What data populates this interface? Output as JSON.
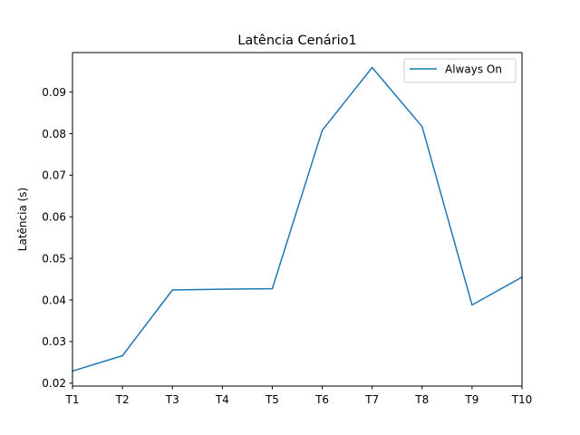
{
  "chart_data": {
    "type": "line",
    "title": "Latência Cenário1",
    "xlabel": "",
    "ylabel": "Latência (s)",
    "categories": [
      "T1",
      "T2",
      "T3",
      "T4",
      "T5",
      "T6",
      "T7",
      "T8",
      "T9",
      "T10"
    ],
    "series": [
      {
        "name": "Always On",
        "color": "#1f77b4",
        "values": [
          0.0229,
          0.0266,
          0.0424,
          0.0426,
          0.0427,
          0.0808,
          0.0959,
          0.0817,
          0.0388,
          0.0455
        ]
      }
    ],
    "yticks": [
      0.02,
      0.03,
      0.04,
      0.05,
      0.06,
      0.07,
      0.08,
      0.09
    ],
    "ytick_labels": [
      "0.02",
      "0.03",
      "0.04",
      "0.05",
      "0.06",
      "0.07",
      "0.08",
      "0.09"
    ],
    "ylim": [
      0.0193,
      0.0995
    ],
    "grid": false,
    "legend_position": "upper-right"
  }
}
